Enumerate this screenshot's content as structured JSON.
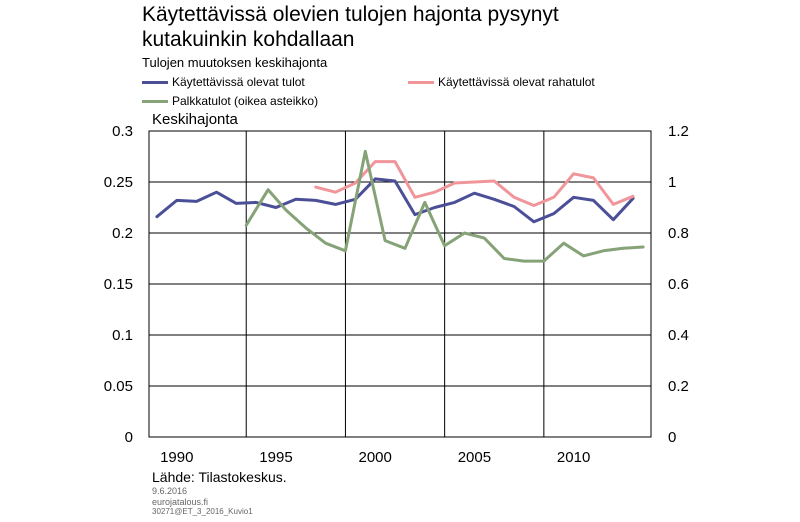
{
  "title": "Käytettävissä olevien tulojen hajonta pysynyt kutakuinkin kohdallaan",
  "subtitle": "Tulojen muutoksen keskihajonta",
  "source": "Lähde: Tilastokeskus.",
  "footer": {
    "date": "9.6.2016",
    "site": "eurojatalous.fi",
    "code": "30271@ET_3_2016_Kuvio1"
  },
  "colors": {
    "disposable": "#4A4F97",
    "cash": "#F0959A",
    "wage": "#86A277",
    "grid": "#000000"
  },
  "chart_data": {
    "type": "line",
    "ylabel": "Keskihajonta",
    "ylim": [
      0,
      0.3
    ],
    "y2lim": [
      0,
      1.2
    ],
    "xlim": [
      1988.6,
      2013.9
    ],
    "left_ticks": [
      "0",
      "0.05",
      "0.1",
      "0.15",
      "0.2",
      "0.25",
      "0.3"
    ],
    "left_tick_values": [
      0,
      0.05,
      0.1,
      0.15,
      0.2,
      0.25,
      0.3
    ],
    "right_ticks": [
      "0",
      "0.2",
      "0.4",
      "0.6",
      "0.8",
      "1",
      "1.2"
    ],
    "right_tick_values": [
      0,
      0.2,
      0.4,
      0.6,
      0.8,
      1,
      1.2
    ],
    "x_ticks": [
      "1990",
      "1995",
      "2000",
      "2005",
      "2010"
    ],
    "x_tick_values": [
      1990,
      1995,
      2000,
      2005,
      2010
    ],
    "vertical_grid": [
      1993.5,
      1998.5,
      2003.5,
      2008.5
    ],
    "series": [
      {
        "name": "Käytettävissä olevat tulot",
        "axis": "left",
        "color_key": "disposable",
        "x": [
          1989,
          1990,
          1991,
          1992,
          1993,
          1994,
          1995,
          1996,
          1997,
          1998,
          1999,
          2000,
          2001,
          2002,
          2003,
          2004,
          2005,
          2006,
          2007,
          2008,
          2009,
          2010,
          2011,
          2012,
          2013
        ],
        "values": [
          0.216,
          0.232,
          0.231,
          0.24,
          0.229,
          0.23,
          0.225,
          0.233,
          0.232,
          0.228,
          0.233,
          0.253,
          0.251,
          0.218,
          0.225,
          0.23,
          0.239,
          0.233,
          0.226,
          0.211,
          0.219,
          0.235,
          0.232,
          0.213,
          0.234
        ]
      },
      {
        "name": "Käytettävissä olevat rahatulot",
        "axis": "left",
        "color_key": "cash",
        "x": [
          1997,
          1998,
          1999,
          2000,
          2001,
          2002,
          2003,
          2004,
          2005,
          2006,
          2007,
          2008,
          2009,
          2010,
          2011,
          2012,
          2013
        ],
        "values": [
          0.245,
          0.24,
          0.249,
          0.27,
          0.27,
          0.235,
          0.24,
          0.249,
          0.25,
          0.251,
          0.235,
          0.227,
          0.235,
          0.258,
          0.254,
          0.228,
          0.236
        ]
      },
      {
        "name": "Palkkatulot (oikea asteikko)",
        "axis": "right",
        "color_key": "wage",
        "x": [
          1993.5,
          1994.6,
          1995.5,
          1996.5,
          1997.5,
          1998.5,
          1999.5,
          2000.5,
          2001.5,
          2002.5,
          2003.5,
          2004.5,
          2005.5,
          2006.5,
          2007.5,
          2008.5,
          2009.5,
          2010.5,
          2011.5,
          2012.5,
          2013.5
        ],
        "values": [
          0.83,
          0.97,
          0.89,
          0.82,
          0.76,
          0.73,
          1.12,
          0.77,
          0.74,
          0.92,
          0.75,
          0.8,
          0.78,
          0.7,
          0.69,
          0.69,
          0.76,
          0.71,
          0.73,
          0.74,
          0.745
        ]
      }
    ]
  }
}
